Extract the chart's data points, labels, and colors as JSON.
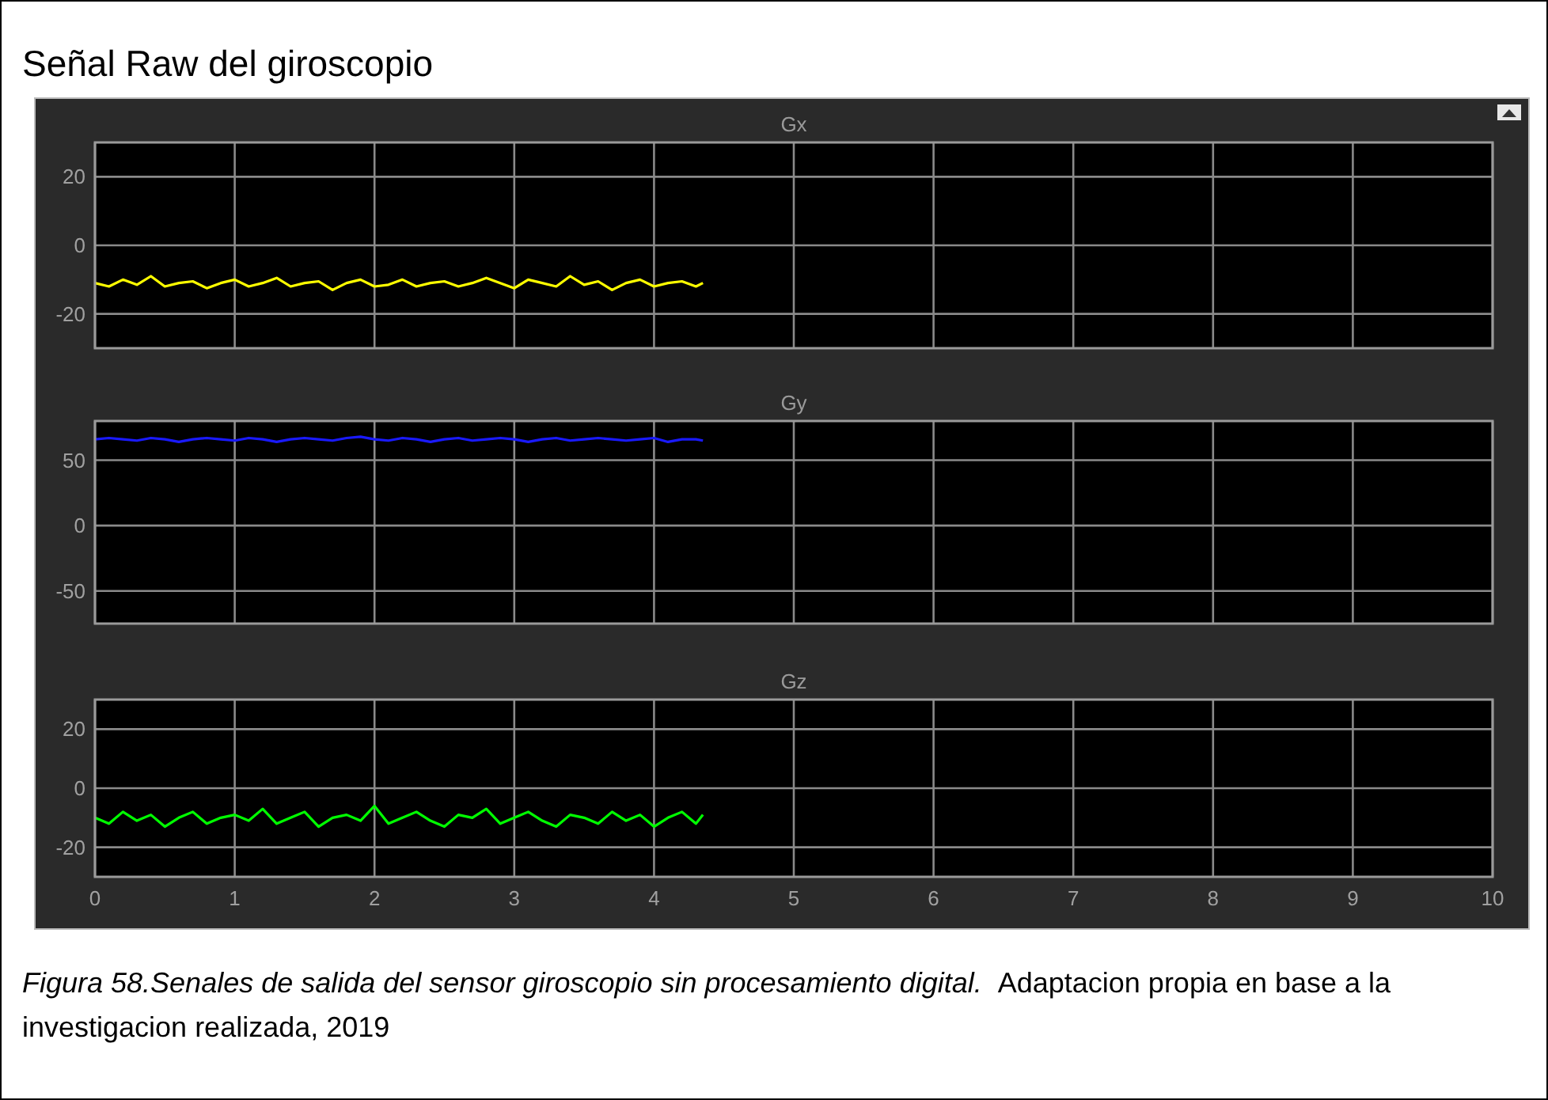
{
  "chart_data": [
    {
      "type": "line",
      "title": "Señal Raw del giroscopio",
      "subtitle": "Gx",
      "x": [
        0,
        0.1,
        0.2,
        0.3,
        0.4,
        0.5,
        0.6,
        0.7,
        0.8,
        0.9,
        1,
        1.1,
        1.2,
        1.3,
        1.4,
        1.5,
        1.6,
        1.7,
        1.8,
        1.9,
        2,
        2.1,
        2.2,
        2.3,
        2.4,
        2.5,
        2.6,
        2.7,
        2.8,
        2.9,
        3,
        3.1,
        3.2,
        3.3,
        3.4,
        3.5,
        3.6,
        3.7,
        3.8,
        3.9,
        4,
        4.1,
        4.2,
        4.3,
        4.35
      ],
      "series": [
        {
          "color": "#ffff00",
          "values": [
            -11,
            -12,
            -10,
            -11.5,
            -9,
            -12,
            -11,
            -10.5,
            -12.5,
            -11,
            -10,
            -12,
            -11,
            -9.5,
            -12,
            -11,
            -10.5,
            -13,
            -11,
            -10,
            -12,
            -11.5,
            -10,
            -12,
            -11,
            -10.5,
            -12,
            -11,
            -9.5,
            -11,
            -12.5,
            -10,
            -11,
            -12,
            -9,
            -11.5,
            -10.5,
            -13,
            -11,
            -10,
            -12,
            -11,
            -10.5,
            -12,
            -11
          ]
        }
      ],
      "xlim": [
        0,
        10
      ],
      "xticks": [
        0,
        1,
        2,
        3,
        4,
        5,
        6,
        7,
        8,
        9,
        10
      ],
      "ylim": [
        -30,
        30
      ],
      "yticks": [
        -20,
        0,
        20
      ],
      "grid": true,
      "tick_labels": "y"
    },
    {
      "type": "line",
      "title": "Gy",
      "x": [
        0,
        0.1,
        0.2,
        0.3,
        0.4,
        0.5,
        0.6,
        0.7,
        0.8,
        0.9,
        1,
        1.1,
        1.2,
        1.3,
        1.4,
        1.5,
        1.6,
        1.7,
        1.8,
        1.9,
        2,
        2.1,
        2.2,
        2.3,
        2.4,
        2.5,
        2.6,
        2.7,
        2.8,
        2.9,
        3,
        3.1,
        3.2,
        3.3,
        3.4,
        3.5,
        3.6,
        3.7,
        3.8,
        3.9,
        4,
        4.1,
        4.2,
        4.3,
        4.35
      ],
      "series": [
        {
          "color": "#1a1aff",
          "values": [
            66,
            67,
            66,
            65,
            67,
            66,
            64,
            66,
            67,
            66,
            65,
            67,
            66,
            64,
            66,
            67,
            66,
            65,
            67,
            68,
            66,
            65,
            67,
            66,
            64,
            66,
            67,
            65,
            66,
            67,
            66,
            64,
            66,
            67,
            65,
            66,
            67,
            66,
            65,
            66,
            67,
            64,
            66,
            66,
            65
          ]
        }
      ],
      "xlim": [
        0,
        10
      ],
      "xticks": [
        0,
        1,
        2,
        3,
        4,
        5,
        6,
        7,
        8,
        9,
        10
      ],
      "ylim": [
        -75,
        80
      ],
      "yticks": [
        -50,
        0,
        50
      ],
      "grid": true,
      "tick_labels": "y"
    },
    {
      "type": "line",
      "title": "Gz",
      "x": [
        0,
        0.1,
        0.2,
        0.3,
        0.4,
        0.5,
        0.6,
        0.7,
        0.8,
        0.9,
        1,
        1.1,
        1.2,
        1.3,
        1.4,
        1.5,
        1.6,
        1.7,
        1.8,
        1.9,
        2,
        2.1,
        2.2,
        2.3,
        2.4,
        2.5,
        2.6,
        2.7,
        2.8,
        2.9,
        3,
        3.1,
        3.2,
        3.3,
        3.4,
        3.5,
        3.6,
        3.7,
        3.8,
        3.9,
        4,
        4.1,
        4.2,
        4.3,
        4.35
      ],
      "series": [
        {
          "color": "#00ff00",
          "values": [
            -10,
            -12,
            -8,
            -11,
            -9,
            -13,
            -10,
            -8,
            -12,
            -10,
            -9,
            -11,
            -7,
            -12,
            -10,
            -8,
            -13,
            -10,
            -9,
            -11,
            -6,
            -12,
            -10,
            -8,
            -11,
            -13,
            -9,
            -10,
            -7,
            -12,
            -10,
            -8,
            -11,
            -13,
            -9,
            -10,
            -12,
            -8,
            -11,
            -9,
            -13,
            -10,
            -8,
            -12,
            -9
          ]
        }
      ],
      "xlim": [
        0,
        10
      ],
      "xticks": [
        0,
        1,
        2,
        3,
        4,
        5,
        6,
        7,
        8,
        9,
        10
      ],
      "ylim": [
        -30,
        30
      ],
      "yticks": [
        -20,
        0,
        20
      ],
      "grid": true,
      "annotations": [
        "Figura 58.Senales de salida del sensor giroscopio sin procesamiento digital.",
        "Adaptacion propia en base a la investigacion realizada, 2019"
      ]
    }
  ]
}
